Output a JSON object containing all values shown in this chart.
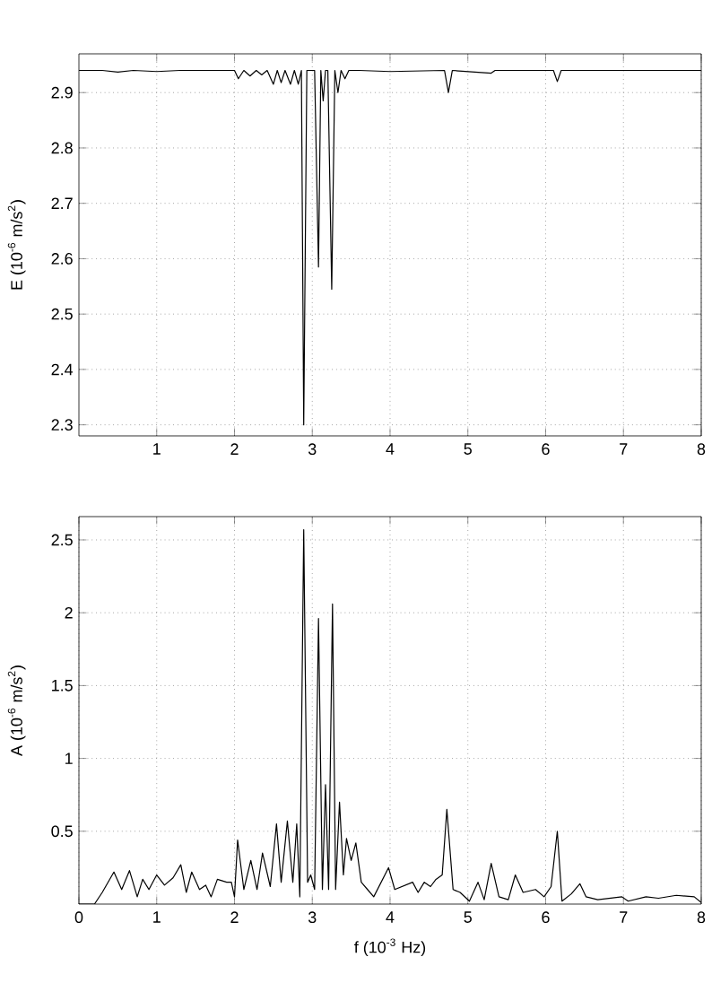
{
  "chart_data": [
    {
      "type": "line",
      "ylabel": "E (10$^{-6}$ m/s$^{2}$)",
      "xlim": [
        0,
        8
      ],
      "xticks": [
        1,
        2,
        3,
        4,
        5,
        6,
        7,
        8
      ],
      "ylim": [
        2.28,
        2.97
      ],
      "yticks": [
        2.3,
        2.4,
        2.5,
        2.6,
        2.7,
        2.8,
        2.9
      ],
      "grid": true,
      "series": [
        {
          "color": "#000000",
          "x": [
            0,
            0.3,
            0.5,
            0.7,
            1.0,
            1.3,
            2.0,
            2.05,
            2.12,
            2.2,
            2.28,
            2.35,
            2.42,
            2.5,
            2.55,
            2.6,
            2.65,
            2.72,
            2.77,
            2.82,
            2.86,
            2.89,
            2.93,
            3.0,
            3.03,
            3.08,
            3.11,
            3.14,
            3.17,
            3.2,
            3.25,
            3.29,
            3.33,
            3.37,
            3.42,
            3.47,
            3.6,
            4.0,
            4.7,
            4.75,
            4.8,
            5.3,
            5.35,
            6.1,
            6.15,
            6.2,
            8
          ],
          "values": [
            2.94,
            2.94,
            2.937,
            2.94,
            2.938,
            2.94,
            2.94,
            2.925,
            2.94,
            2.93,
            2.94,
            2.932,
            2.94,
            2.915,
            2.94,
            2.918,
            2.94,
            2.915,
            2.94,
            2.915,
            2.94,
            2.3,
            2.94,
            2.94,
            2.94,
            2.585,
            2.94,
            2.885,
            2.94,
            2.94,
            2.545,
            2.94,
            2.9,
            2.94,
            2.925,
            2.94,
            2.94,
            2.938,
            2.94,
            2.9,
            2.94,
            2.935,
            2.94,
            2.94,
            2.92,
            2.94,
            2.94
          ]
        }
      ]
    },
    {
      "type": "line",
      "xlabel": "f (10$^{-3}$ Hz)",
      "ylabel": "A (10$^{-6}$ m/s$^{2}$)",
      "xlim": [
        0,
        8
      ],
      "xticks": [
        0,
        1,
        2,
        3,
        4,
        5,
        6,
        7,
        8
      ],
      "ylim": [
        0,
        2.66
      ],
      "yticks": [
        0.5,
        1,
        1.5,
        2,
        2.5
      ],
      "grid": true,
      "series": [
        {
          "color": "#000000",
          "x": [
            0,
            0.2,
            0.3,
            0.45,
            0.55,
            0.65,
            0.75,
            0.82,
            0.9,
            1.0,
            1.1,
            1.21,
            1.31,
            1.38,
            1.45,
            1.55,
            1.63,
            1.7,
            1.78,
            1.9,
            1.96,
            2.0,
            2.04,
            2.12,
            2.21,
            2.29,
            2.36,
            2.46,
            2.54,
            2.6,
            2.68,
            2.75,
            2.8,
            2.84,
            2.89,
            2.94,
            2.98,
            3.03,
            3.08,
            3.13,
            3.17,
            3.21,
            3.26,
            3.3,
            3.35,
            3.4,
            3.44,
            3.5,
            3.56,
            3.63,
            3.71,
            3.79,
            3.98,
            4.06,
            4.29,
            4.36,
            4.44,
            4.52,
            4.59,
            4.67,
            4.73,
            4.81,
            4.9,
            5.02,
            5.13,
            5.21,
            5.3,
            5.4,
            5.52,
            5.61,
            5.71,
            5.87,
            5.98,
            6.07,
            6.15,
            6.21,
            6.33,
            6.44,
            6.52,
            6.67,
            6.98,
            7.06,
            7.29,
            7.45,
            7.68,
            7.91,
            8
          ],
          "values": [
            0,
            0,
            0.08,
            0.22,
            0.1,
            0.23,
            0.05,
            0.17,
            0.1,
            0.2,
            0.13,
            0.18,
            0.27,
            0.08,
            0.22,
            0.1,
            0.13,
            0.05,
            0.17,
            0.15,
            0.15,
            0.05,
            0.44,
            0.1,
            0.3,
            0.1,
            0.35,
            0.12,
            0.55,
            0.15,
            0.57,
            0.15,
            0.55,
            0.05,
            2.57,
            0.15,
            0.2,
            0.1,
            1.96,
            0.1,
            0.82,
            0.1,
            2.06,
            0.1,
            0.7,
            0.2,
            0.45,
            0.3,
            0.42,
            0.15,
            0.1,
            0.05,
            0.25,
            0.1,
            0.15,
            0.08,
            0.15,
            0.12,
            0.17,
            0.2,
            0.65,
            0.1,
            0.08,
            0.02,
            0.15,
            0.03,
            0.28,
            0.05,
            0.03,
            0.2,
            0.08,
            0.1,
            0.05,
            0.12,
            0.5,
            0.02,
            0.07,
            0.14,
            0.05,
            0.03,
            0.05,
            0.02,
            0.05,
            0.04,
            0.06,
            0.05,
            0.01
          ]
        }
      ]
    }
  ]
}
